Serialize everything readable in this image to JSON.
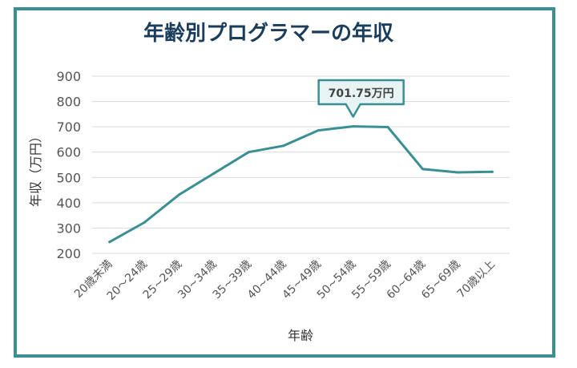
{
  "chart_data": {
    "type": "line",
    "title": "年齢別プログラマーの年収",
    "xlabel": "年齢",
    "ylabel": "年収（万円）",
    "categories": [
      "20歳未満",
      "20～24歳",
      "25~29歳",
      "30~34歳",
      "35~39歳",
      "40~44歳",
      "45~49歳",
      "50~54歳",
      "55~59歳",
      "60~64歳",
      "65~69歳",
      "70歳以上"
    ],
    "values": [
      245,
      322,
      432,
      516,
      600,
      625,
      686,
      701.75,
      699,
      533,
      520,
      522
    ],
    "ylim": [
      200,
      900
    ],
    "yticks": [
      200,
      300,
      400,
      500,
      600,
      700,
      800,
      900
    ],
    "grid": "horizontal",
    "annotation": {
      "category_index": 7,
      "text": "701.75万円"
    },
    "colors": {
      "line": "#3a8f94",
      "frame": "#3a8f94",
      "title": "#1b3d5c"
    }
  }
}
